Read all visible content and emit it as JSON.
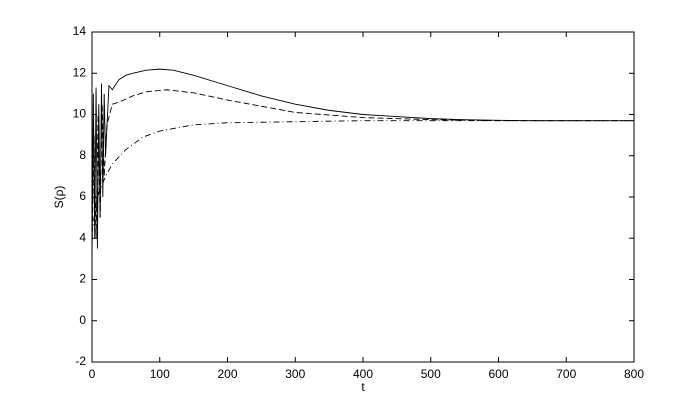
{
  "chart_data": {
    "type": "line",
    "xlabel": "t",
    "ylabel": "S(ρ)",
    "xlim": [
      0,
      800
    ],
    "xticks": [
      0,
      100,
      200,
      300,
      400,
      500,
      600,
      700,
      800
    ],
    "ylim": [
      -2,
      14
    ],
    "yticks": [
      -2,
      0,
      2,
      4,
      6,
      8,
      10,
      12,
      14
    ],
    "grid": false,
    "series": [
      {
        "color": "#000000",
        "line_style": "solid",
        "x": [
          0,
          2,
          4,
          6,
          8,
          10,
          12,
          14,
          16,
          18,
          20,
          25,
          30,
          40,
          50,
          60,
          80,
          100,
          120,
          150,
          200,
          250,
          300,
          350,
          400,
          450,
          500,
          550,
          600,
          650,
          700,
          750,
          800
        ],
        "values": [
          3,
          11,
          4,
          11.3,
          3.5,
          10.5,
          5,
          11.5,
          6,
          11,
          8,
          11.4,
          11.2,
          11.7,
          11.9,
          12.0,
          12.15,
          12.2,
          12.15,
          11.9,
          11.4,
          10.9,
          10.5,
          10.2,
          10.0,
          9.9,
          9.8,
          9.75,
          9.72,
          9.7,
          9.7,
          9.7,
          9.7
        ]
      },
      {
        "color": "#000000",
        "line_style": "dashed",
        "x": [
          0,
          3,
          6,
          9,
          12,
          15,
          18,
          22,
          30,
          40,
          60,
          80,
          110,
          150,
          200,
          250,
          300,
          400,
          500,
          600,
          700,
          800
        ],
        "values": [
          3.5,
          9,
          4,
          10,
          5,
          10.5,
          7,
          9.5,
          10.5,
          10.6,
          10.9,
          11.1,
          11.2,
          11.05,
          10.7,
          10.4,
          10.1,
          9.85,
          9.75,
          9.7,
          9.7,
          9.7
        ]
      },
      {
        "color": "#000000",
        "line_style": "dashdot",
        "x": [
          0,
          5,
          10,
          20,
          30,
          50,
          75,
          100,
          150,
          200,
          300,
          400,
          500,
          600,
          700,
          800
        ],
        "values": [
          4.2,
          5.5,
          6.2,
          7,
          7.6,
          8.3,
          8.9,
          9.2,
          9.5,
          9.6,
          9.65,
          9.7,
          9.7,
          9.7,
          9.7,
          9.7
        ]
      }
    ]
  }
}
